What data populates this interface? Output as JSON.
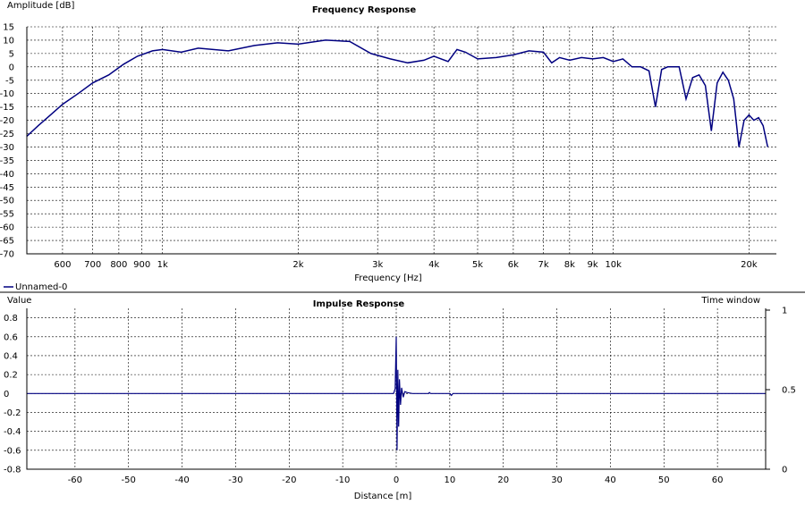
{
  "legend_entry": "Unnamed-0",
  "chart_data": [
    {
      "type": "line",
      "title": "Frequency Response",
      "xlabel": "Frequency [Hz]",
      "ylabel": "Amplitude [dB]",
      "xscale": "log",
      "xlim": [
        500,
        23000
      ],
      "ylim": [
        -70,
        15
      ],
      "grid": true,
      "x_ticks": [
        {
          "v": 600,
          "label": "600"
        },
        {
          "v": 700,
          "label": "700"
        },
        {
          "v": 800,
          "label": "800"
        },
        {
          "v": 900,
          "label": "900"
        },
        {
          "v": 1000,
          "label": "1k"
        },
        {
          "v": 2000,
          "label": "2k"
        },
        {
          "v": 3000,
          "label": "3k"
        },
        {
          "v": 4000,
          "label": "4k"
        },
        {
          "v": 5000,
          "label": "5k"
        },
        {
          "v": 6000,
          "label": "6k"
        },
        {
          "v": 7000,
          "label": "7k"
        },
        {
          "v": 8000,
          "label": "8k"
        },
        {
          "v": 9000,
          "label": "9k"
        },
        {
          "v": 10000,
          "label": "10k"
        },
        {
          "v": 20000,
          "label": "20k"
        }
      ],
      "y_ticks": [
        15,
        10,
        5,
        0,
        -5,
        -10,
        -15,
        -20,
        -25,
        -30,
        -35,
        -40,
        -45,
        -50,
        -55,
        -60,
        -65,
        -70
      ],
      "series": [
        {
          "name": "Unnamed-0",
          "color": "#000080",
          "x": [
            500,
            530,
            560,
            600,
            650,
            700,
            760,
            820,
            880,
            950,
            1000,
            1100,
            1200,
            1400,
            1600,
            1800,
            2000,
            2300,
            2600,
            2900,
            3200,
            3500,
            3800,
            4000,
            4300,
            4500,
            4700,
            5000,
            5500,
            6000,
            6500,
            7000,
            7300,
            7600,
            8000,
            8500,
            9000,
            9500,
            10000,
            10500,
            11000,
            11500,
            12000,
            12400,
            12800,
            13200,
            14000,
            14500,
            15000,
            15500,
            16000,
            16500,
            17000,
            17500,
            18000,
            18500,
            19000,
            19500,
            20000,
            20500,
            21000,
            21500,
            22000
          ],
          "y": [
            -26,
            -22,
            -18.5,
            -14,
            -10,
            -6,
            -3,
            1,
            4,
            6,
            6.5,
            5.5,
            7,
            6,
            8,
            9,
            8.5,
            10,
            9.5,
            5,
            3,
            1.5,
            2.5,
            4,
            2,
            6.5,
            5.5,
            3,
            3.5,
            4.5,
            6,
            5.5,
            1.5,
            3.5,
            2.5,
            3.5,
            3,
            3.5,
            2,
            3,
            0,
            0,
            -1.5,
            -15,
            -1,
            0,
            0,
            -12,
            -4,
            -3,
            -7,
            -24,
            -6,
            -2,
            -5,
            -12,
            -30,
            -20,
            -18,
            -20,
            -19,
            -22,
            -30
          ]
        }
      ]
    },
    {
      "type": "line",
      "title": "Impulse Response",
      "xlabel": "Distance [m]",
      "ylabel": "Value",
      "xlim": [
        -69,
        69
      ],
      "ylim": [
        -0.8,
        0.9
      ],
      "grid": true,
      "x_ticks": [
        -60,
        -50,
        -40,
        -30,
        -20,
        -10,
        0,
        10,
        20,
        30,
        40,
        50,
        60
      ],
      "y_ticks": [
        0.8,
        0.6,
        0.4,
        0.2,
        0,
        -0.2,
        -0.4,
        -0.6,
        -0.8
      ],
      "secondary_axis": {
        "label": "Time window",
        "ticks": [
          1,
          0.5,
          0
        ]
      },
      "series": [
        {
          "name": "Unnamed-0",
          "color": "#000080",
          "x": [
            -69,
            -0.5,
            -0.2,
            0,
            0.15,
            0.3,
            0.45,
            0.6,
            0.8,
            1.0,
            1.3,
            1.6,
            2.0,
            3.0,
            6.0,
            6.2,
            6.4,
            10.0,
            10.3,
            10.6,
            69
          ],
          "y": [
            0,
            0,
            0.05,
            0.6,
            -0.6,
            0.25,
            -0.35,
            0.15,
            -0.12,
            0.06,
            -0.04,
            0.02,
            0.01,
            0,
            0,
            0.01,
            0,
            0,
            -0.02,
            0,
            0
          ]
        }
      ]
    }
  ]
}
